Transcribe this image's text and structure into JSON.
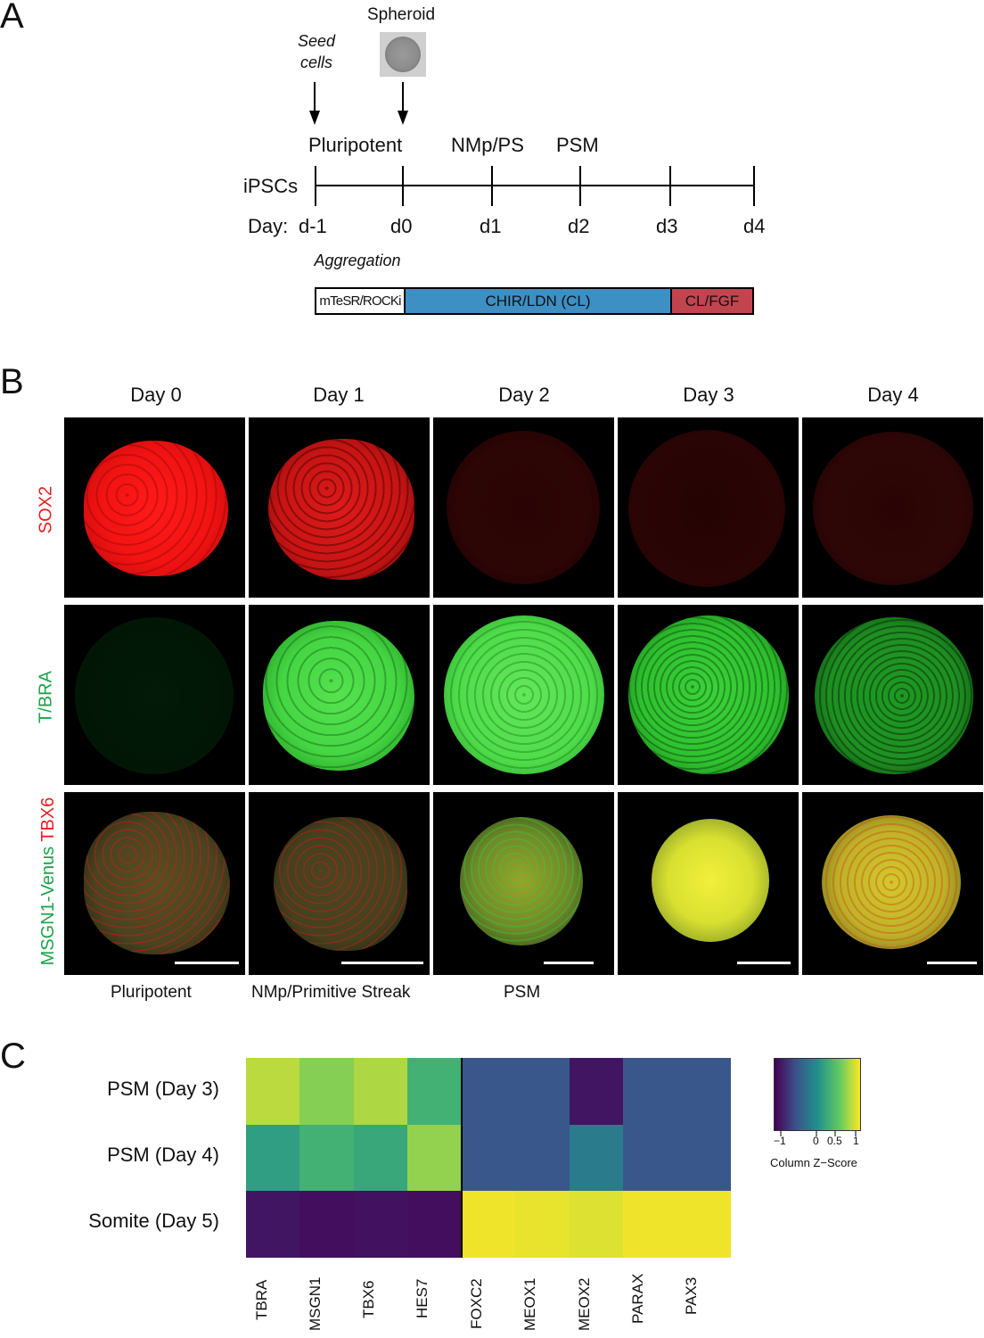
{
  "panel_a": {
    "letter": "A",
    "seed_cells": "Seed cells",
    "seed_line1": "Seed",
    "seed_line2": "cells",
    "spheroid": "Spheroid",
    "stages": [
      "Pluripotent",
      "NMp/PS",
      "PSM"
    ],
    "ipscs": "iPSCs",
    "day_prefix": "Day:",
    "days": [
      "d-1",
      "d0",
      "d1",
      "d2",
      "d3",
      "d4"
    ],
    "aggregation": "Aggregation",
    "media": [
      "mTeSR/ROCKi",
      "CHIR/LDN (CL)",
      "CL/FGF"
    ],
    "media_colors": [
      "#ffffff",
      "#3d8fc4",
      "#c2444f"
    ]
  },
  "panel_b": {
    "letter": "B",
    "columns": [
      "Day 0",
      "Day 1",
      "Day 2",
      "Day 3",
      "Day 4"
    ],
    "rows": [
      "SOX2",
      "T/BRA",
      "MSGN1-Venus",
      "TBX6"
    ],
    "row_colors": {
      "sox2": "#e31e24",
      "tbra": "#1ea14a",
      "msgn1": "#1ea14a",
      "tbx6": "#e31e24"
    },
    "stages": [
      "Pluripotent",
      "NMp/Primitive Streak",
      "PSM"
    ]
  },
  "panel_c": {
    "letter": "C",
    "legend_title": "Column Z−Score",
    "legend_ticks": [
      "−1",
      "0",
      "0.5",
      "1"
    ]
  },
  "chart_data": {
    "type": "heatmap",
    "rows": [
      "PSM (Day 3)",
      "PSM (Day 4)",
      "Somite (Day 5)"
    ],
    "columns": [
      "TBRA",
      "MSGN1",
      "TBX6",
      "HES7",
      "FOXC2",
      "MEOX1",
      "MEOX2",
      "PARAX",
      "PAX3"
    ],
    "values": [
      [
        0.95,
        0.75,
        0.9,
        0.35,
        -0.55,
        -0.55,
        -1.05,
        -0.55,
        -0.55
      ],
      [
        0.15,
        0.35,
        0.25,
        0.8,
        -0.55,
        -0.55,
        -0.2,
        -0.55,
        -0.55
      ],
      [
        -1.05,
        -1.1,
        -1.08,
        -1.1,
        1.15,
        1.12,
        1.08,
        1.15,
        1.15
      ]
    ],
    "colorbar": {
      "label": "Column Z−Score",
      "range": [
        -1.2,
        1.2
      ],
      "colormap": "viridis"
    },
    "column_split_after": 4
  }
}
